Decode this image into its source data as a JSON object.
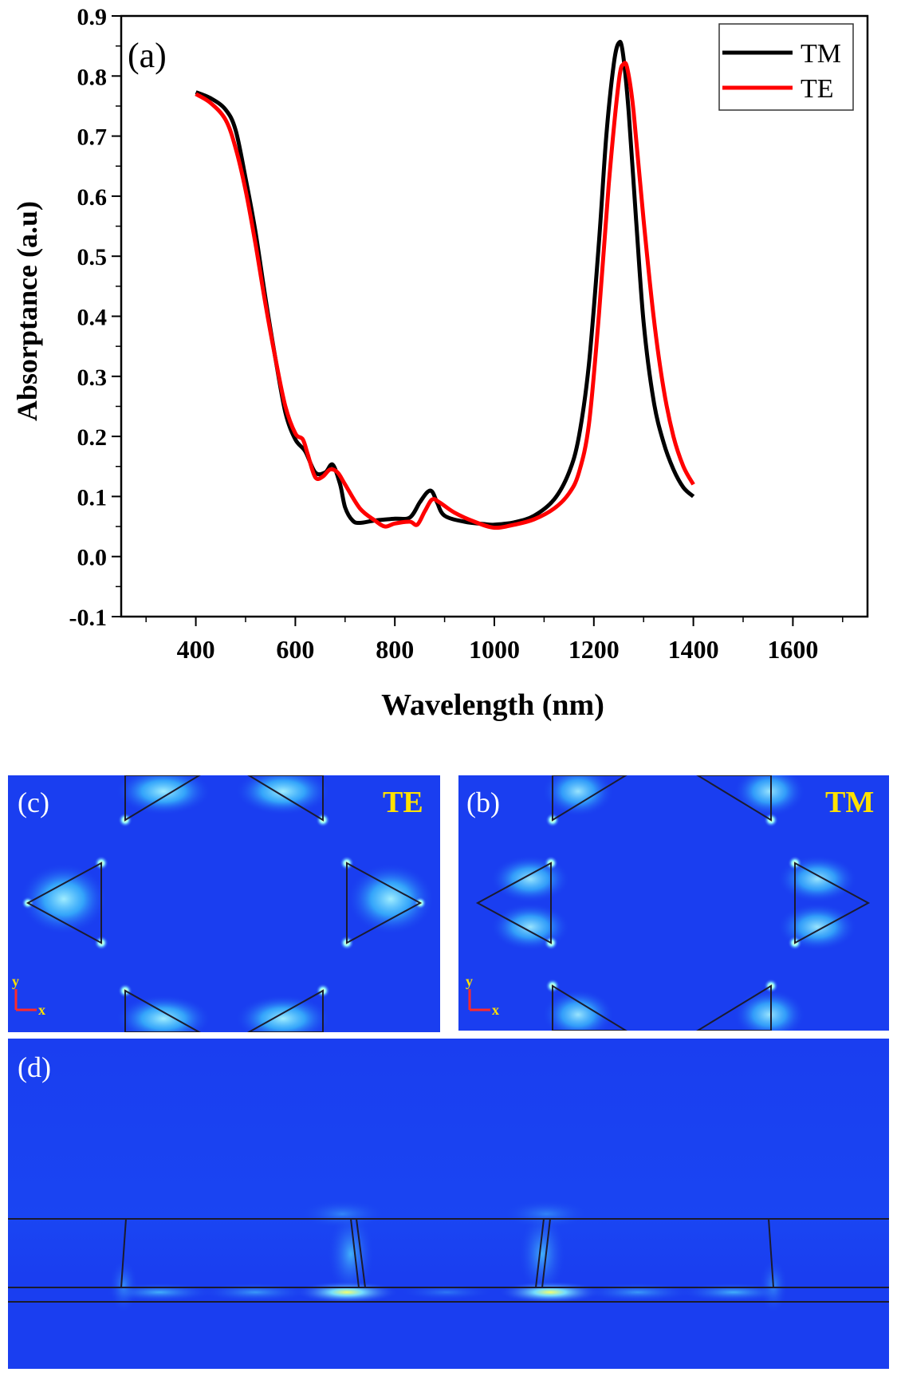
{
  "chart_data": {
    "type": "line",
    "panel_label": "(a)",
    "xlabel": "Wavelength (nm)",
    "ylabel": "Absorptance (a.u)",
    "xlim": [
      250,
      1750
    ],
    "ylim": [
      -0.1,
      0.9
    ],
    "xticks": [
      400,
      600,
      800,
      1000,
      1200,
      1400,
      1600
    ],
    "yticks": [
      -0.1,
      0.0,
      0.1,
      0.2,
      0.3,
      0.4,
      0.5,
      0.6,
      0.7,
      0.8,
      0.9
    ],
    "ytick_labels": [
      "-0.1",
      "0.0",
      "0.1",
      "0.2",
      "0.3",
      "0.4",
      "0.5",
      "0.6",
      "0.7",
      "0.8",
      "0.9"
    ],
    "legend_position": "top-right",
    "series": [
      {
        "name": "TM",
        "color": "#000000",
        "x": [
          400,
          430,
          460,
          480,
          500,
          520,
          540,
          560,
          580,
          600,
          620,
          640,
          660,
          675,
          690,
          700,
          715,
          730,
          760,
          800,
          830,
          850,
          865,
          875,
          885,
          900,
          940,
          980,
          1000,
          1040,
          1080,
          1120,
          1150,
          1170,
          1190,
          1210,
          1225,
          1240,
          1250,
          1258,
          1270,
          1285,
          1300,
          1320,
          1340,
          1360,
          1380,
          1400
        ],
        "y": [
          0.773,
          0.763,
          0.744,
          0.71,
          0.63,
          0.54,
          0.43,
          0.33,
          0.24,
          0.195,
          0.175,
          0.14,
          0.14,
          0.153,
          0.12,
          0.082,
          0.06,
          0.056,
          0.06,
          0.063,
          0.065,
          0.09,
          0.107,
          0.108,
          0.09,
          0.068,
          0.058,
          0.054,
          0.053,
          0.057,
          0.068,
          0.095,
          0.14,
          0.2,
          0.32,
          0.52,
          0.7,
          0.82,
          0.855,
          0.84,
          0.74,
          0.56,
          0.39,
          0.26,
          0.19,
          0.145,
          0.115,
          0.1
        ]
      },
      {
        "name": "TE",
        "color": "#ff0000",
        "x": [
          400,
          430,
          460,
          480,
          500,
          520,
          540,
          560,
          580,
          600,
          615,
          625,
          640,
          655,
          670,
          685,
          700,
          730,
          760,
          780,
          800,
          830,
          845,
          860,
          875,
          890,
          920,
          960,
          1000,
          1040,
          1080,
          1120,
          1150,
          1170,
          1190,
          1210,
          1230,
          1250,
          1260,
          1268,
          1280,
          1300,
          1320,
          1340,
          1360,
          1380,
          1400
        ],
        "y": [
          0.77,
          0.755,
          0.727,
          0.68,
          0.61,
          0.52,
          0.42,
          0.33,
          0.25,
          0.205,
          0.195,
          0.17,
          0.132,
          0.133,
          0.145,
          0.14,
          0.12,
          0.08,
          0.06,
          0.05,
          0.055,
          0.058,
          0.053,
          0.075,
          0.095,
          0.09,
          0.073,
          0.058,
          0.048,
          0.053,
          0.062,
          0.08,
          0.105,
          0.14,
          0.22,
          0.4,
          0.62,
          0.79,
          0.82,
          0.81,
          0.74,
          0.56,
          0.4,
          0.28,
          0.2,
          0.15,
          0.12
        ]
      }
    ]
  },
  "field_maps": {
    "panel_c": {
      "label": "(c)",
      "polarization": "TE",
      "axis_y": "y",
      "axis_x": "x"
    },
    "panel_b": {
      "label": "(b)",
      "polarization": "TM",
      "axis_y": "y",
      "axis_x": "x"
    },
    "panel_d": {
      "label": "(d)"
    },
    "colors": {
      "background": "#1a3ef0",
      "hot": "#7ff0ff",
      "peak": "#f6ff5a",
      "outline": "#1b1b2e",
      "label_yellow": "#ffe100"
    }
  }
}
